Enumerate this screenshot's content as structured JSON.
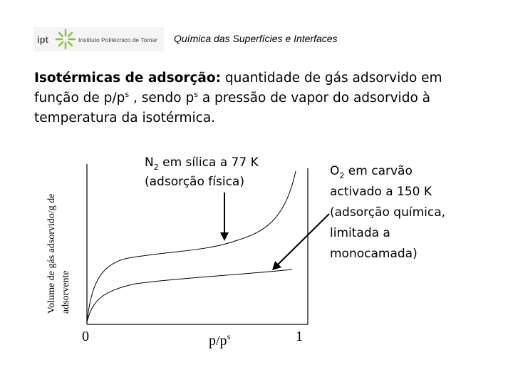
{
  "header": {
    "logo_text": "ipt",
    "institution": "Instituto Politécnico de Tomar",
    "title": "Química das Superfícies e Interfaces"
  },
  "description": {
    "bold": "Isotérmicas de adsorção:",
    "line1": " quantidade de gás adsorvido em",
    "line2a": "função de p/p",
    "sup1": "s",
    "line2b": " , sendo p",
    "sup2": "s",
    "line2c": " a pressão de vapor do adsorvido à",
    "line3": "temperatura da isotérmica."
  },
  "figure": {
    "y_label": [
      "Volume de gás adsorvido/g de",
      "adsorvente"
    ],
    "x_start": "0",
    "x_mid": "p/p",
    "x_mid_sup": "s",
    "x_end": "1",
    "n2_label": {
      "main": "N",
      "sub": "2",
      "rest": " em sílica a 77 K",
      "line2": "(adsorção física)"
    },
    "o2_label": {
      "main": "O",
      "sub": "2",
      "rest": " em carvão",
      "lines": [
        "activado a 150 K",
        "(adsorção química,",
        "limitada a",
        "monocamada)"
      ]
    }
  }
}
